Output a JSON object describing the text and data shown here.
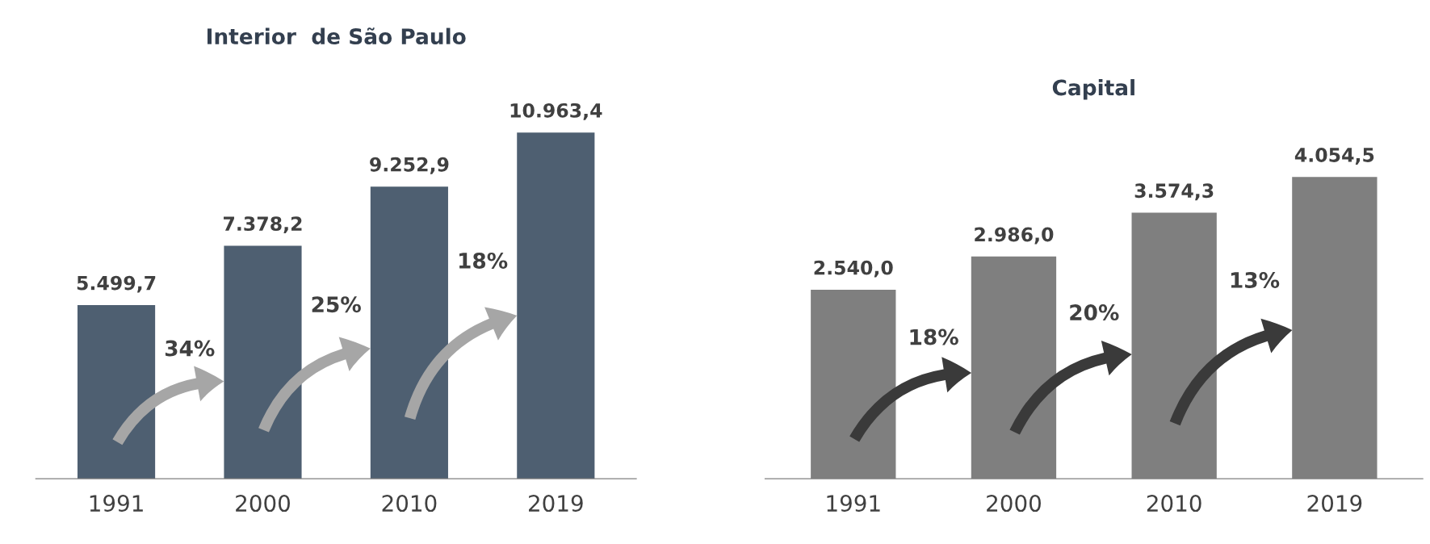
{
  "chart_data": [
    {
      "type": "bar",
      "title": "Interior  de São Paulo",
      "categories": [
        "1991",
        "2000",
        "2010",
        "2019"
      ],
      "color": "#4e5f71",
      "values": [
        5499.7,
        7378.2,
        9252.9,
        10963.4
      ],
      "value_labels": [
        "5.499,7",
        "7.378,2",
        "9.252,9",
        "10.963,4"
      ],
      "annotations": [
        "34%",
        "25%",
        "18%"
      ]
    },
    {
      "type": "bar",
      "title": "Capital",
      "categories": [
        "1991",
        "2000",
        "2010",
        "2019"
      ],
      "color": "#7f7f7f",
      "values": [
        2540.0,
        2986.0,
        3574.3,
        4054.5
      ],
      "value_labels": [
        "2.540,0",
        "2.986,0",
        "3.574,3",
        "4.054,5"
      ],
      "annotations": [
        "18%",
        "20%",
        "13%"
      ]
    }
  ]
}
